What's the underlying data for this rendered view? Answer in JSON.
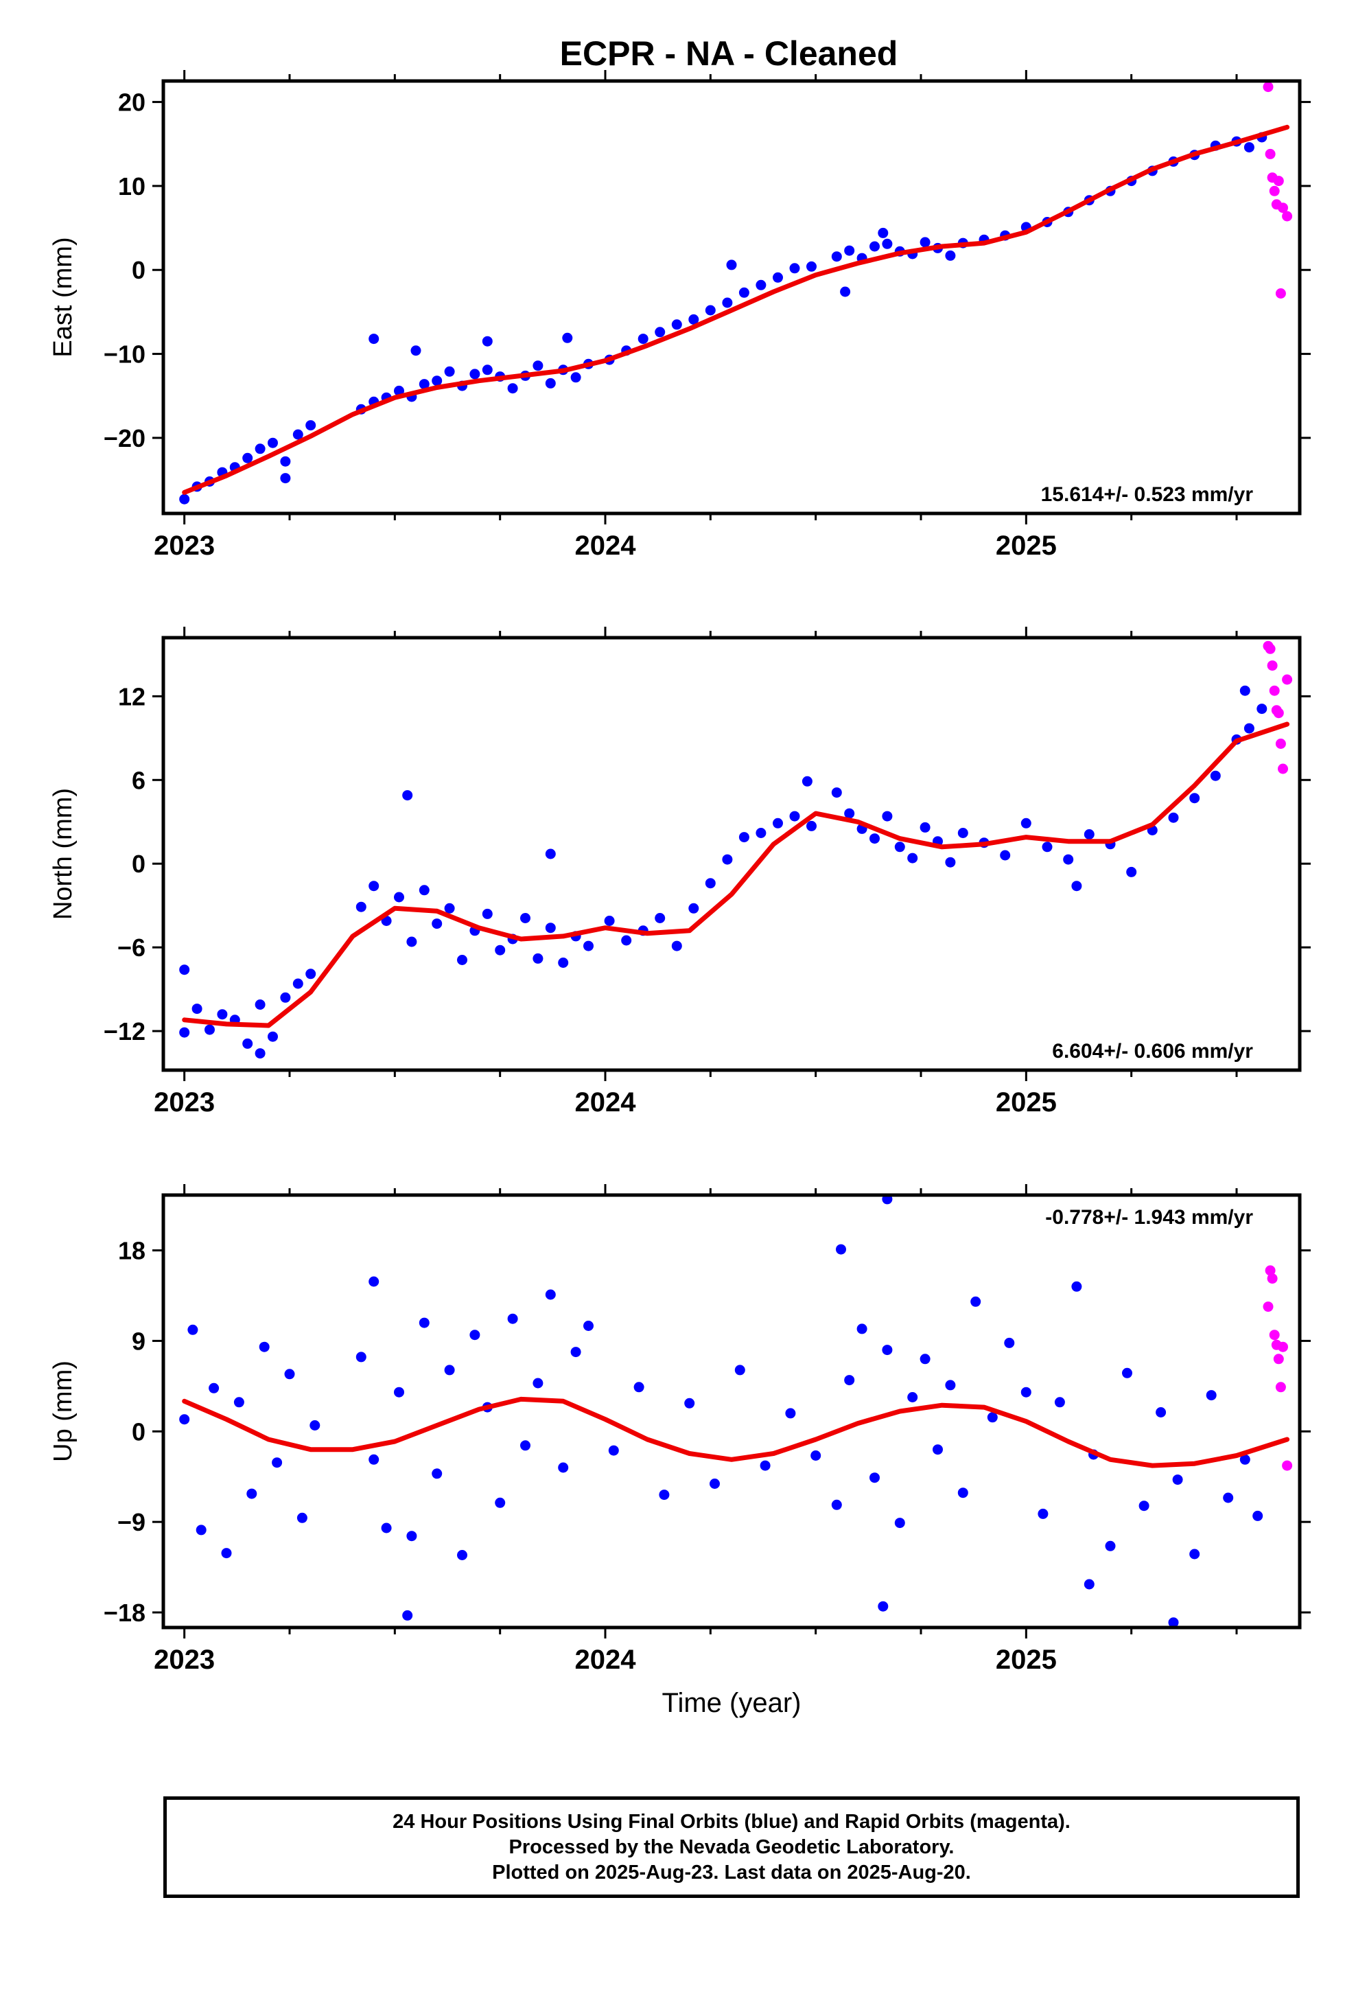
{
  "title": "ECPR  - NA - Cleaned",
  "colors": {
    "final": "#0000ff",
    "rapid": "#ff00ff",
    "model": "#ee0000",
    "axis": "#000000"
  },
  "chart_data": [
    {
      "type": "scatter",
      "ylabel": "East (mm)",
      "xlim": [
        2022.95,
        2025.65
      ],
      "ylim": [
        -29,
        22.5
      ],
      "yticks": [
        -20,
        -10,
        0,
        10,
        20
      ],
      "xticks": [
        2023,
        2024,
        2025
      ],
      "rate_label": "15.614+/- 0.523 mm/yr",
      "rate_pos": "bottom-right",
      "model": {
        "x": [
          2023.0,
          2023.1,
          2023.2,
          2023.3,
          2023.4,
          2023.5,
          2023.6,
          2023.7,
          2023.8,
          2023.9,
          2024.0,
          2024.1,
          2024.2,
          2024.3,
          2024.4,
          2024.5,
          2024.6,
          2024.7,
          2024.8,
          2024.9,
          2025.0,
          2025.1,
          2025.2,
          2025.3,
          2025.4,
          2025.5,
          2025.62
        ],
        "y": [
          -26.5,
          -24.5,
          -22.2,
          -19.8,
          -17.2,
          -15.2,
          -14.0,
          -13.2,
          -12.6,
          -12.0,
          -10.8,
          -9.0,
          -7.0,
          -4.8,
          -2.6,
          -0.6,
          0.8,
          2.0,
          2.8,
          3.2,
          4.5,
          7.0,
          9.6,
          12.0,
          13.8,
          15.2,
          17.0
        ]
      },
      "series": [
        {
          "kind": "final",
          "x": [
            2023.0,
            2023.03,
            2023.06,
            2023.09,
            2023.12,
            2023.15,
            2023.18,
            2023.21,
            2023.24,
            2023.27,
            2023.3,
            2023.42,
            2023.45,
            2023.48,
            2023.51,
            2023.54,
            2023.57,
            2023.6,
            2023.63,
            2023.66,
            2023.69,
            2023.72,
            2023.75,
            2023.78,
            2023.81,
            2023.84,
            2023.87,
            2023.9,
            2023.93,
            2023.96,
            2024.01,
            2024.05,
            2024.09,
            2024.13,
            2024.17,
            2024.21,
            2024.25,
            2024.29,
            2024.33,
            2024.37,
            2024.41,
            2024.45,
            2024.49,
            2024.55,
            2024.58,
            2024.61,
            2024.64,
            2024.67,
            2024.7,
            2024.73,
            2024.76,
            2024.79,
            2024.82,
            2024.85,
            2024.9,
            2024.95,
            2025.0,
            2025.05,
            2025.1,
            2025.15,
            2025.2,
            2025.25,
            2025.3,
            2025.35,
            2025.4,
            2025.45,
            2025.5,
            2025.53,
            2025.56,
            2023.45,
            2023.55,
            2023.72,
            2023.91,
            2024.3,
            2024.66,
            2023.24,
            2024.57
          ],
          "y": [
            -27.3,
            -25.8,
            -25.2,
            -24.1,
            -23.5,
            -22.4,
            -21.3,
            -20.6,
            -22.8,
            -19.6,
            -18.5,
            -16.6,
            -15.7,
            -15.2,
            -14.4,
            -15.1,
            -13.6,
            -13.2,
            -12.1,
            -13.8,
            -12.4,
            -11.9,
            -12.7,
            -14.1,
            -12.6,
            -11.4,
            -13.5,
            -11.9,
            -12.8,
            -11.2,
            -10.7,
            -9.6,
            -8.2,
            -7.4,
            -6.5,
            -5.9,
            -4.8,
            -3.9,
            -2.7,
            -1.8,
            -0.9,
            0.2,
            0.4,
            1.6,
            2.3,
            1.4,
            2.8,
            3.1,
            2.2,
            1.9,
            3.3,
            2.6,
            1.7,
            3.2,
            3.6,
            4.1,
            5.1,
            5.7,
            6.9,
            8.3,
            9.4,
            10.6,
            11.8,
            12.9,
            13.7,
            14.8,
            15.3,
            14.6,
            15.8,
            -8.2,
            -9.6,
            -8.5,
            -8.1,
            0.6,
            4.4,
            -24.8,
            -2.6
          ]
        },
        {
          "kind": "rapid",
          "x": [
            2025.575,
            2025.58,
            2025.585,
            2025.59,
            2025.595,
            2025.6,
            2025.605,
            2025.61,
            2025.62
          ],
          "y": [
            21.8,
            13.8,
            11.0,
            9.4,
            7.8,
            10.6,
            -2.8,
            7.4,
            6.4
          ]
        }
      ]
    },
    {
      "type": "scatter",
      "ylabel": "North (mm)",
      "xlim": [
        2022.95,
        2025.65
      ],
      "ylim": [
        -14.8,
        16.2
      ],
      "yticks": [
        -12,
        -6,
        0,
        6,
        12
      ],
      "xticks": [
        2023,
        2024,
        2025
      ],
      "rate_label": "6.604+/- 0.606 mm/yr",
      "rate_pos": "bottom-right",
      "model": {
        "x": [
          2023.0,
          2023.1,
          2023.2,
          2023.3,
          2023.4,
          2023.5,
          2023.6,
          2023.7,
          2023.8,
          2023.9,
          2024.0,
          2024.1,
          2024.2,
          2024.3,
          2024.4,
          2024.5,
          2024.6,
          2024.7,
          2024.8,
          2024.9,
          2025.0,
          2025.1,
          2025.2,
          2025.3,
          2025.4,
          2025.5,
          2025.62
        ],
        "y": [
          -11.2,
          -11.5,
          -11.6,
          -9.2,
          -5.2,
          -3.2,
          -3.4,
          -4.6,
          -5.4,
          -5.2,
          -4.6,
          -5.0,
          -4.8,
          -2.2,
          1.4,
          3.6,
          3.0,
          1.8,
          1.2,
          1.4,
          1.9,
          1.6,
          1.6,
          2.8,
          5.6,
          8.8,
          10.0
        ]
      },
      "series": [
        {
          "kind": "final",
          "x": [
            2023.0,
            2023.03,
            2023.06,
            2023.09,
            2023.12,
            2023.15,
            2023.18,
            2023.21,
            2023.24,
            2023.27,
            2023.3,
            2023.42,
            2023.45,
            2023.48,
            2023.51,
            2023.54,
            2023.57,
            2023.6,
            2023.63,
            2023.66,
            2023.69,
            2023.72,
            2023.75,
            2023.78,
            2023.81,
            2023.84,
            2023.87,
            2023.9,
            2023.93,
            2023.96,
            2024.01,
            2024.05,
            2024.09,
            2024.13,
            2024.17,
            2024.21,
            2024.25,
            2024.29,
            2024.33,
            2024.37,
            2024.41,
            2024.45,
            2024.49,
            2024.55,
            2024.58,
            2024.61,
            2024.64,
            2024.67,
            2024.7,
            2024.73,
            2024.76,
            2024.79,
            2024.82,
            2024.85,
            2024.9,
            2024.95,
            2025.0,
            2025.05,
            2025.1,
            2025.15,
            2025.2,
            2025.25,
            2025.3,
            2025.35,
            2025.4,
            2025.45,
            2025.5,
            2025.53,
            2025.56,
            2023.0,
            2023.53,
            2023.87,
            2024.48,
            2023.18,
            2025.12,
            2025.52
          ],
          "y": [
            -12.1,
            -10.4,
            -11.9,
            -10.8,
            -11.2,
            -12.9,
            -10.1,
            -12.4,
            -9.6,
            -8.6,
            -7.9,
            -3.1,
            -1.6,
            -4.1,
            -2.4,
            -5.6,
            -1.9,
            -4.3,
            -3.2,
            -6.9,
            -4.8,
            -3.6,
            -6.2,
            -5.4,
            -3.9,
            -6.8,
            -4.6,
            -7.1,
            -5.2,
            -5.9,
            -4.1,
            -5.5,
            -4.8,
            -3.9,
            -5.9,
            -3.2,
            -1.4,
            0.3,
            1.9,
            2.2,
            2.9,
            3.4,
            2.7,
            5.1,
            3.6,
            2.5,
            1.8,
            3.4,
            1.2,
            0.4,
            2.6,
            1.6,
            0.1,
            2.2,
            1.5,
            0.6,
            2.9,
            1.2,
            0.3,
            2.1,
            1.4,
            -0.6,
            2.4,
            3.3,
            4.7,
            6.3,
            8.9,
            9.7,
            11.1,
            -7.6,
            4.9,
            0.7,
            5.9,
            -13.6,
            -1.6,
            12.4
          ]
        },
        {
          "kind": "rapid",
          "x": [
            2025.575,
            2025.58,
            2025.585,
            2025.59,
            2025.595,
            2025.6,
            2025.605,
            2025.61,
            2025.62
          ],
          "y": [
            15.6,
            15.4,
            14.2,
            12.4,
            11.0,
            10.8,
            8.6,
            6.8,
            13.2
          ]
        }
      ]
    },
    {
      "type": "scatter",
      "ylabel": "Up (mm)",
      "xlabel": "Time (year)",
      "xlim": [
        2022.95,
        2025.65
      ],
      "ylim": [
        -19.5,
        23.5
      ],
      "yticks": [
        -18,
        -9,
        0,
        9,
        18
      ],
      "xticks": [
        2023,
        2024,
        2025
      ],
      "rate_label": "-0.778+/- 1.943 mm/yr",
      "rate_pos": "top-right",
      "model": {
        "x": [
          2023.0,
          2023.1,
          2023.2,
          2023.3,
          2023.4,
          2023.5,
          2023.6,
          2023.7,
          2023.8,
          2023.9,
          2024.0,
          2024.1,
          2024.2,
          2024.3,
          2024.4,
          2024.5,
          2024.6,
          2024.7,
          2024.8,
          2024.9,
          2025.0,
          2025.1,
          2025.2,
          2025.3,
          2025.4,
          2025.5,
          2025.62
        ],
        "y": [
          3.0,
          1.2,
          -0.8,
          -1.8,
          -1.8,
          -1.0,
          0.6,
          2.2,
          3.2,
          3.0,
          1.2,
          -0.8,
          -2.2,
          -2.8,
          -2.2,
          -0.8,
          0.8,
          2.0,
          2.6,
          2.4,
          1.0,
          -1.0,
          -2.8,
          -3.4,
          -3.2,
          -2.4,
          -0.8
        ]
      },
      "series": [
        {
          "kind": "final",
          "x": [
            2023.0,
            2023.02,
            2023.04,
            2023.07,
            2023.1,
            2023.13,
            2023.16,
            2023.19,
            2023.22,
            2023.25,
            2023.28,
            2023.31,
            2023.42,
            2023.45,
            2023.48,
            2023.51,
            2023.54,
            2023.57,
            2023.6,
            2023.63,
            2023.66,
            2023.69,
            2023.72,
            2023.75,
            2023.78,
            2023.81,
            2023.84,
            2023.87,
            2023.9,
            2023.93,
            2023.96,
            2024.02,
            2024.08,
            2024.14,
            2024.2,
            2024.26,
            2024.32,
            2024.38,
            2024.44,
            2024.5,
            2024.55,
            2024.58,
            2024.61,
            2024.64,
            2024.67,
            2024.7,
            2024.73,
            2024.76,
            2024.79,
            2024.82,
            2024.85,
            2024.88,
            2024.92,
            2024.96,
            2025.0,
            2025.04,
            2025.08,
            2025.12,
            2025.16,
            2025.2,
            2025.24,
            2025.28,
            2025.32,
            2025.36,
            2025.4,
            2025.44,
            2025.48,
            2025.52,
            2025.55,
            2024.67,
            2024.56,
            2023.45,
            2024.66,
            2023.53,
            2025.35,
            2025.15
          ],
          "y": [
            1.2,
            10.1,
            -9.8,
            4.3,
            -12.1,
            2.9,
            -6.2,
            8.4,
            -3.1,
            5.7,
            -8.6,
            0.6,
            7.4,
            -2.8,
            -9.6,
            3.9,
            -10.4,
            10.8,
            -4.2,
            6.1,
            -12.3,
            9.6,
            2.4,
            -7.1,
            11.2,
            -1.4,
            4.8,
            13.6,
            -3.6,
            7.9,
            10.5,
            -1.9,
            4.4,
            -6.3,
            2.8,
            -5.2,
            6.1,
            -3.4,
            1.8,
            -2.4,
            -7.3,
            5.1,
            10.2,
            -4.6,
            8.1,
            -9.1,
            3.4,
            7.2,
            -1.8,
            4.6,
            -6.1,
            12.9,
            1.4,
            8.8,
            3.9,
            -8.2,
            2.9,
            14.4,
            -2.3,
            -11.4,
            5.8,
            -7.4,
            1.9,
            -4.8,
            -12.2,
            3.6,
            -6.6,
            -2.8,
            -8.4,
            23.1,
            18.1,
            14.9,
            -17.4,
            -18.3,
            -19.0,
            -15.2
          ]
        },
        {
          "kind": "rapid",
          "x": [
            2025.575,
            2025.58,
            2025.585,
            2025.59,
            2025.595,
            2025.6,
            2025.605,
            2025.61,
            2025.62
          ],
          "y": [
            12.4,
            16.0,
            15.2,
            9.6,
            8.6,
            7.2,
            4.4,
            8.4,
            -3.4
          ]
        }
      ]
    }
  ],
  "footer": {
    "line1": "24 Hour Positions Using Final Orbits (blue) and Rapid Orbits (magenta).",
    "line2": "Processed by the Nevada Geodetic Laboratory.",
    "line3": "Plotted on 2025-Aug-23. Last data on 2025-Aug-20."
  }
}
